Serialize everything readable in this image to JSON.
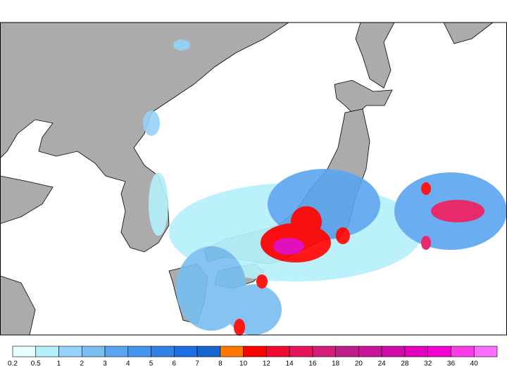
{
  "legend": {
    "labels": [
      0.2,
      0.5,
      1,
      2,
      3,
      4,
      5,
      6,
      7,
      8,
      10,
      12,
      14,
      16,
      18,
      20,
      24,
      28,
      32,
      36,
      40
    ],
    "colors": [
      "#e6ffff",
      "#b4f0fa",
      "#96d2fa",
      "#78bef0",
      "#5aa5f0",
      "#4696f0",
      "#3282e6",
      "#1e6ee6",
      "#1464d2",
      "#ff7800",
      "#ff0000",
      "#f00a32",
      "#e6145a",
      "#d21e78",
      "#be1e8c",
      "#c8149b",
      "#d20aaa",
      "#e600be",
      "#f500d2",
      "#fa3ce6",
      "#fa6eff"
    ]
  }
}
